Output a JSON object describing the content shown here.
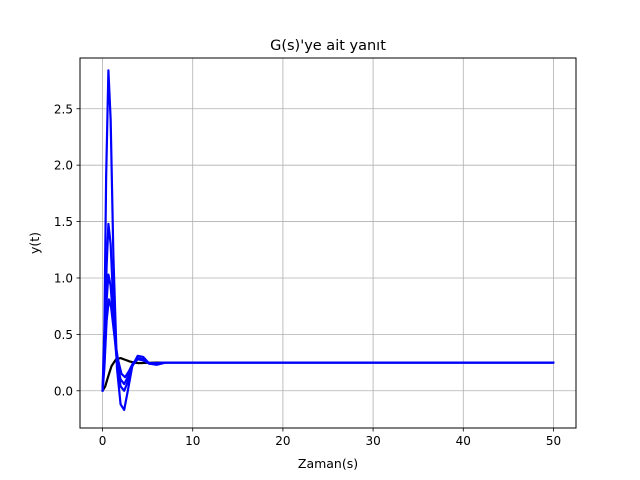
{
  "chart_data": {
    "type": "line",
    "title": "G(s)'ye ait yanıt",
    "xlabel": "Zaman(s)",
    "ylabel": "y(t)",
    "xlim": [
      -2.5,
      52.5
    ],
    "ylim": [
      -0.33,
      2.95
    ],
    "xticks": [
      0,
      10,
      20,
      30,
      40,
      50
    ],
    "yticks": [
      0.0,
      0.5,
      1.0,
      1.5,
      2.0,
      2.5
    ],
    "xtick_labels": [
      "0",
      "10",
      "20",
      "30",
      "40",
      "50"
    ],
    "ytick_labels": [
      "0.0",
      "0.5",
      "1.0",
      "1.5",
      "2.0",
      "2.5"
    ],
    "grid": true,
    "legend": null,
    "series": [
      {
        "color": "#000000",
        "points": [
          [
            0,
            0
          ],
          [
            0.3,
            0.04
          ],
          [
            0.6,
            0.12
          ],
          [
            1.0,
            0.22
          ],
          [
            1.5,
            0.28
          ],
          [
            2.0,
            0.29
          ],
          [
            2.5,
            0.275
          ],
          [
            3.0,
            0.26
          ],
          [
            3.5,
            0.25
          ],
          [
            4.0,
            0.245
          ],
          [
            5.0,
            0.248
          ],
          [
            6.0,
            0.25
          ],
          [
            8.0,
            0.25
          ],
          [
            50.0,
            0.25
          ]
        ]
      },
      {
        "color": "#0000ff",
        "points": [
          [
            0,
            0
          ],
          [
            0.2,
            0.55
          ],
          [
            0.4,
            1.9
          ],
          [
            0.65,
            2.84
          ],
          [
            0.9,
            2.4
          ],
          [
            1.2,
            1.2
          ],
          [
            1.6,
            0.2
          ],
          [
            2.0,
            -0.12
          ],
          [
            2.4,
            -0.17
          ],
          [
            2.8,
            0.0
          ],
          [
            3.3,
            0.22
          ],
          [
            3.9,
            0.31
          ],
          [
            4.5,
            0.3
          ],
          [
            5.2,
            0.24
          ],
          [
            6.0,
            0.23
          ],
          [
            7.0,
            0.25
          ],
          [
            8.0,
            0.25
          ],
          [
            50.0,
            0.25
          ]
        ]
      },
      {
        "color": "#0000ff",
        "points": [
          [
            0,
            0
          ],
          [
            0.2,
            0.35
          ],
          [
            0.45,
            1.1
          ],
          [
            0.65,
            1.48
          ],
          [
            0.9,
            1.3
          ],
          [
            1.2,
            0.75
          ],
          [
            1.6,
            0.25
          ],
          [
            2.0,
            0.04
          ],
          [
            2.4,
            0.0
          ],
          [
            2.8,
            0.08
          ],
          [
            3.3,
            0.22
          ],
          [
            3.9,
            0.29
          ],
          [
            4.5,
            0.28
          ],
          [
            5.2,
            0.24
          ],
          [
            6.0,
            0.24
          ],
          [
            7.0,
            0.25
          ],
          [
            8.0,
            0.25
          ],
          [
            50.0,
            0.25
          ]
        ]
      },
      {
        "color": "#0000ff",
        "points": [
          [
            0,
            0
          ],
          [
            0.2,
            0.25
          ],
          [
            0.45,
            0.8
          ],
          [
            0.65,
            1.03
          ],
          [
            0.9,
            0.93
          ],
          [
            1.2,
            0.6
          ],
          [
            1.6,
            0.25
          ],
          [
            2.0,
            0.1
          ],
          [
            2.4,
            0.06
          ],
          [
            2.8,
            0.12
          ],
          [
            3.3,
            0.23
          ],
          [
            3.9,
            0.28
          ],
          [
            4.5,
            0.27
          ],
          [
            5.2,
            0.24
          ],
          [
            6.0,
            0.245
          ],
          [
            7.0,
            0.25
          ],
          [
            8.0,
            0.25
          ],
          [
            50.0,
            0.25
          ]
        ]
      },
      {
        "color": "#0000ff",
        "points": [
          [
            0,
            0
          ],
          [
            0.2,
            0.2
          ],
          [
            0.45,
            0.62
          ],
          [
            0.7,
            0.81
          ],
          [
            0.95,
            0.74
          ],
          [
            1.3,
            0.5
          ],
          [
            1.7,
            0.28
          ],
          [
            2.1,
            0.15
          ],
          [
            2.5,
            0.12
          ],
          [
            2.9,
            0.17
          ],
          [
            3.4,
            0.25
          ],
          [
            3.9,
            0.28
          ],
          [
            4.5,
            0.27
          ],
          [
            5.2,
            0.245
          ],
          [
            6.0,
            0.245
          ],
          [
            7.0,
            0.25
          ],
          [
            8.0,
            0.25
          ],
          [
            50.0,
            0.25
          ]
        ]
      }
    ]
  }
}
